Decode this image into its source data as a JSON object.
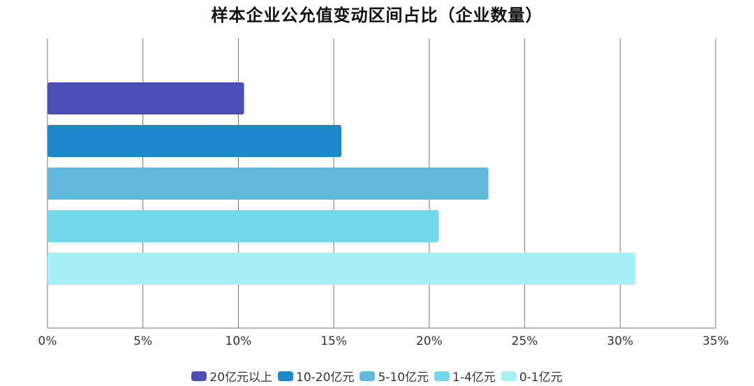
{
  "chart_data": {
    "type": "bar",
    "orientation": "horizontal",
    "title": "样本企业公允值变动区间占比（企业数量）",
    "xlim": [
      0,
      35
    ],
    "x_ticks": [
      "0%",
      "5%",
      "10%",
      "15%",
      "20%",
      "25%",
      "30%",
      "35%"
    ],
    "grid": true,
    "legend_position": "bottom",
    "series": [
      {
        "name": "20亿元以上",
        "value": 10.3,
        "color": "#4b4fb5"
      },
      {
        "name": "10-20亿元",
        "value": 15.4,
        "color": "#1e88cc"
      },
      {
        "name": "5-10亿元",
        "value": 23.1,
        "color": "#64b8da"
      },
      {
        "name": "1-4亿元",
        "value": 20.5,
        "color": "#73d8ea"
      },
      {
        "name": "0-1亿元",
        "value": 30.8,
        "color": "#a5eff5"
      }
    ]
  }
}
